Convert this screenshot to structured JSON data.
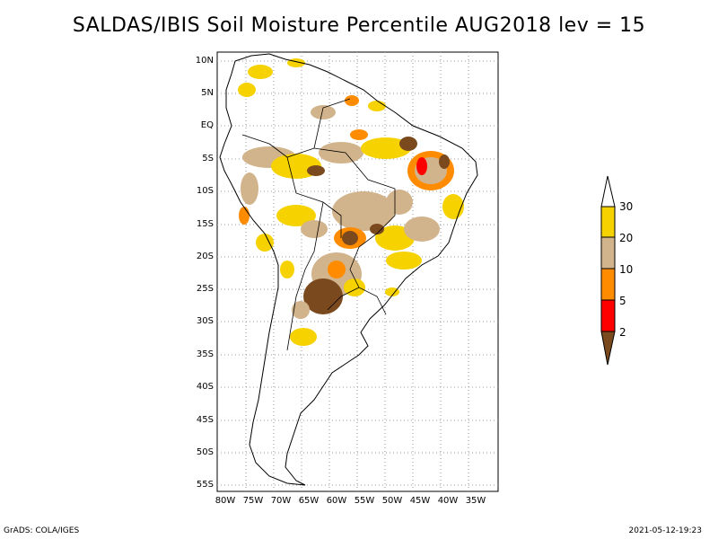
{
  "title": "SALDAS/IBIS Soil Moisture Percentile AUG2018 lev = 15",
  "footer_left": "GrADS: COLA/IGES",
  "footer_right": "2021-05-12-19:23",
  "lat_labels": [
    "10N",
    "5N",
    "EQ",
    "5S",
    "10S",
    "15S",
    "20S",
    "25S",
    "30S",
    "35S",
    "40S",
    "45S",
    "50S",
    "55S"
  ],
  "lon_labels": [
    "80W",
    "75W",
    "70W",
    "65W",
    "60W",
    "55W",
    "50W",
    "45W",
    "40W",
    "35W"
  ],
  "colorbar": {
    "labels": [
      "30",
      "20",
      "10",
      "5",
      "2"
    ],
    "colors": {
      "gt30": "#ffffff",
      "c20_30": "#f5d200",
      "c10_20": "#d2b48c",
      "c5_10": "#ff8c00",
      "c2_5": "#ff0000",
      "lt2": "#7a4a1e"
    }
  },
  "grid_on": true
}
